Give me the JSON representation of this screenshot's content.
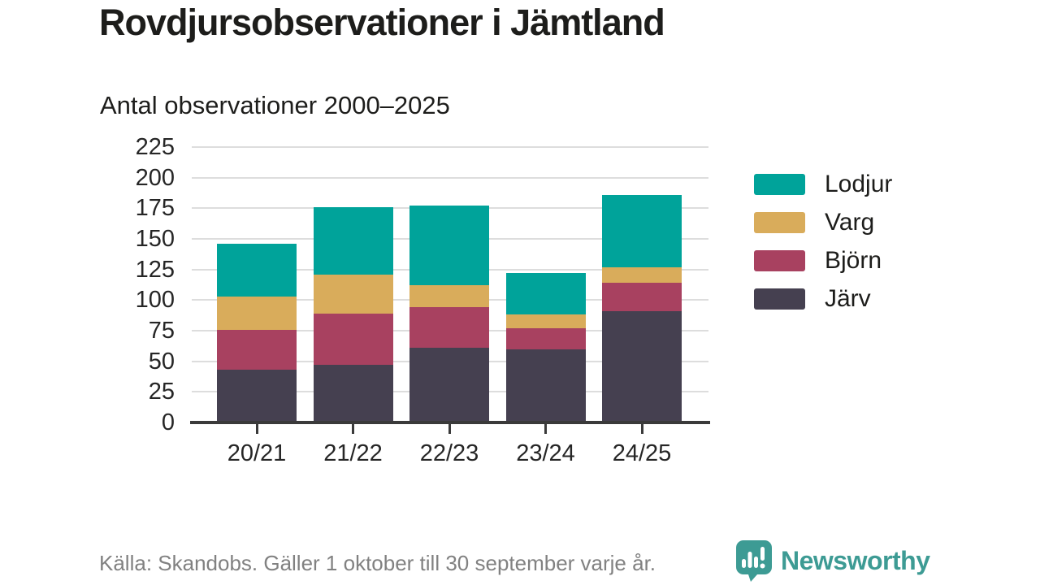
{
  "header": {
    "title": "Rovdjursobservationer i Jämtland"
  },
  "chart_data": {
    "type": "bar",
    "stacked": true,
    "title": "Antal observationer 2000–2025",
    "categories": [
      "20/21",
      "21/22",
      "22/23",
      "23/24",
      "24/25"
    ],
    "series": [
      {
        "name": "Lodjur",
        "color": "#00a39a",
        "values": [
          43,
          55,
          65,
          34,
          59
        ]
      },
      {
        "name": "Varg",
        "color": "#d9ac5b",
        "values": [
          27,
          32,
          18,
          11,
          13
        ]
      },
      {
        "name": "Björn",
        "color": "#a84160",
        "values": [
          33,
          42,
          33,
          17,
          23
        ]
      },
      {
        "name": "Järv",
        "color": "#454050",
        "values": [
          43,
          47,
          61,
          60,
          91
        ]
      }
    ],
    "stack_order_bottom_to_top": [
      "Järv",
      "Björn",
      "Varg",
      "Lodjur"
    ],
    "totals": [
      146,
      176,
      177,
      122,
      186
    ],
    "y_axis": {
      "min": 0,
      "max": 225,
      "step": 25,
      "tick_labels": [
        "0",
        "25",
        "50",
        "75",
        "100",
        "125",
        "150",
        "175",
        "200",
        "225"
      ]
    },
    "grid": true,
    "legend_position": "right",
    "legend_order": [
      "Lodjur",
      "Varg",
      "Björn",
      "Järv"
    ]
  },
  "footer": {
    "source": "Källa: Skandobs. Gäller 1 oktober till 30 september varje år.",
    "brand": "Newsworthy"
  },
  "colors": {
    "teal": "#00a39a",
    "gold": "#d9ac5b",
    "maroon": "#a84160",
    "dark": "#454050",
    "grid": "#dddddd",
    "axis": "#3a3a3a",
    "text": "#1d1d1b",
    "muted_text": "#818181",
    "brand_teal": "#3d9b94"
  }
}
